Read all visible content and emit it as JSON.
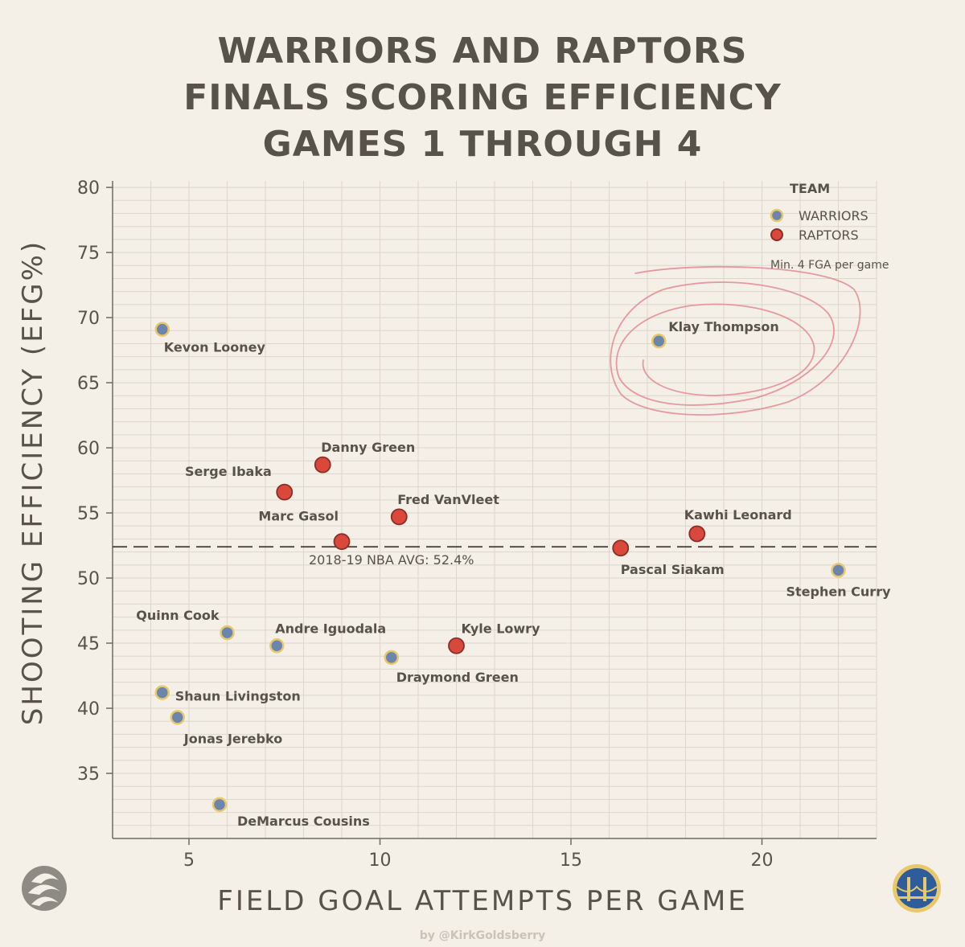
{
  "title": {
    "line1": "WARRIORS AND RAPTORS",
    "line2": "FINALS SCORING EFFICIENCY",
    "line3": "GAMES 1 THROUGH 4"
  },
  "legend": {
    "title": "TEAM",
    "warriors_label": "WARRIORS",
    "raptors_label": "RAPTORS",
    "note": "Min. 4 FGA per game"
  },
  "credit": "by @KirkGoldsberry",
  "colors": {
    "warriors_fill": "#6b85ad",
    "warriors_stroke": "#e8c86a",
    "raptors_fill": "#d9483b",
    "raptors_stroke": "#8a2e26",
    "text": "#57534a",
    "grid": "#dcd6cc",
    "annotation": "#e58a92"
  },
  "icons": {
    "raptors_logo": "raptors-claw-icon",
    "warriors_logo": "warriors-bridge-icon"
  },
  "chart_data": {
    "type": "scatter",
    "xlabel": "FIELD GOAL ATTEMPTS PER GAME",
    "ylabel": "SHOOTING EFFICIENCY (EFG%)",
    "xlim": [
      3,
      23
    ],
    "ylim": [
      30,
      80.5
    ],
    "xticks": [
      5,
      10,
      15,
      20
    ],
    "yticks": [
      35,
      40,
      45,
      50,
      55,
      60,
      65,
      70,
      75,
      80
    ],
    "grid": true,
    "legend_position": "top-right",
    "reference_line": {
      "y": 52.4,
      "label": "2018-19 NBA AVG: 52.4%"
    },
    "points": [
      {
        "name": "Kevon Looney",
        "team": "warriors",
        "x": 4.3,
        "y": 69.1
      },
      {
        "name": "Klay Thompson",
        "team": "warriors",
        "x": 17.3,
        "y": 68.2
      },
      {
        "name": "Stephen Curry",
        "team": "warriors",
        "x": 22.0,
        "y": 50.6
      },
      {
        "name": "Quinn Cook",
        "team": "warriors",
        "x": 6.0,
        "y": 45.8
      },
      {
        "name": "Andre Iguodala",
        "team": "warriors",
        "x": 7.3,
        "y": 44.8
      },
      {
        "name": "Draymond Green",
        "team": "warriors",
        "x": 10.3,
        "y": 43.9
      },
      {
        "name": "Shaun Livingston",
        "team": "warriors",
        "x": 4.3,
        "y": 41.2
      },
      {
        "name": "Jonas Jerebko",
        "team": "warriors",
        "x": 4.7,
        "y": 39.3
      },
      {
        "name": "DeMarcus Cousins",
        "team": "warriors",
        "x": 5.8,
        "y": 32.6
      },
      {
        "name": "Danny Green",
        "team": "raptors",
        "x": 8.5,
        "y": 58.7
      },
      {
        "name": "Serge Ibaka",
        "team": "raptors",
        "x": 7.5,
        "y": 56.6
      },
      {
        "name": "Fred VanVleet",
        "team": "raptors",
        "x": 10.5,
        "y": 54.7
      },
      {
        "name": "Marc Gasol",
        "team": "raptors",
        "x": 9.0,
        "y": 52.8
      },
      {
        "name": "Kawhi Leonard",
        "team": "raptors",
        "x": 18.3,
        "y": 53.4
      },
      {
        "name": "Pascal Siakam",
        "team": "raptors",
        "x": 16.3,
        "y": 52.3
      },
      {
        "name": "Kyle Lowry",
        "team": "raptors",
        "x": 12.0,
        "y": 44.8
      }
    ]
  }
}
